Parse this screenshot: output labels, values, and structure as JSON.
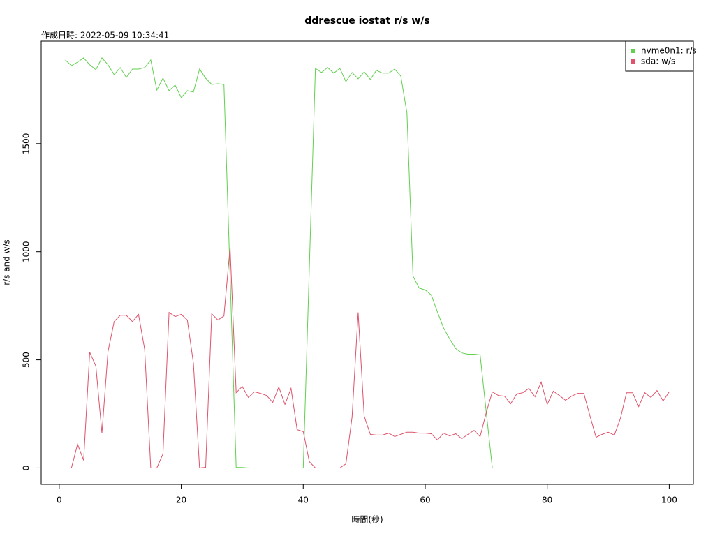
{
  "chart_data": {
    "type": "line",
    "title": "ddrescue iostat r/s w/s",
    "subtitle": "作成日時: 2022-05-09 10:34:41",
    "x_label": "時間(秒)",
    "y_label": "r/s and w/s",
    "x": [
      1,
      2,
      3,
      4,
      5,
      6,
      7,
      8,
      9,
      10,
      11,
      12,
      13,
      14,
      15,
      16,
      17,
      18,
      19,
      20,
      21,
      22,
      23,
      24,
      25,
      26,
      27,
      28,
      29,
      30,
      31,
      32,
      33,
      34,
      35,
      36,
      37,
      38,
      39,
      40,
      41,
      42,
      43,
      44,
      45,
      46,
      47,
      48,
      49,
      50,
      51,
      52,
      53,
      54,
      55,
      56,
      57,
      58,
      59,
      60,
      61,
      62,
      63,
      64,
      65,
      66,
      67,
      68,
      69,
      70,
      71,
      72,
      73,
      74,
      75,
      76,
      77,
      78,
      79,
      80,
      81,
      82,
      83,
      84,
      85,
      86,
      87,
      88,
      89,
      90,
      91,
      92,
      93,
      94,
      95,
      96,
      97,
      98,
      99,
      100
    ],
    "series": [
      {
        "name": "nvme0n1: r/s",
        "color": "#61D04F",
        "values": [
          1887,
          1861,
          1877,
          1897,
          1865,
          1842,
          1897,
          1865,
          1819,
          1852,
          1806,
          1845,
          1845,
          1852,
          1887,
          1748,
          1803,
          1745,
          1771,
          1713,
          1745,
          1739,
          1845,
          1803,
          1774,
          1777,
          1774,
          890,
          2,
          2,
          0,
          0,
          0,
          0,
          0,
          0,
          0,
          0,
          0,
          0,
          925,
          1848,
          1829,
          1852,
          1826,
          1848,
          1787,
          1829,
          1800,
          1832,
          1797,
          1839,
          1826,
          1826,
          1845,
          1813,
          1642,
          887,
          832,
          823,
          800,
          721,
          648,
          597,
          552,
          532,
          526,
          526,
          523,
          261,
          0,
          0,
          0,
          0,
          0,
          0,
          0,
          0,
          0,
          0,
          0,
          0,
          0,
          0,
          0,
          0,
          0,
          0,
          0,
          0,
          0,
          0,
          0,
          0,
          0,
          0,
          0,
          0,
          0,
          0
        ]
      },
      {
        "name": "sda: w/s",
        "color": "#DF536B",
        "values": [
          0,
          0,
          110,
          35,
          535,
          471,
          161,
          539,
          677,
          706,
          706,
          677,
          710,
          548,
          0,
          0,
          65,
          719,
          700,
          710,
          684,
          484,
          0,
          3,
          713,
          684,
          703,
          1019,
          348,
          377,
          326,
          352,
          345,
          335,
          303,
          374,
          294,
          368,
          177,
          168,
          29,
          0,
          0,
          0,
          0,
          0,
          19,
          235,
          719,
          239,
          155,
          152,
          152,
          161,
          145,
          155,
          165,
          165,
          161,
          161,
          158,
          129,
          161,
          148,
          158,
          135,
          155,
          174,
          145,
          255,
          352,
          335,
          332,
          297,
          342,
          348,
          368,
          329,
          397,
          294,
          355,
          335,
          313,
          332,
          345,
          345,
          242,
          142,
          155,
          165,
          152,
          229,
          348,
          348,
          284,
          348,
          326,
          358,
          310,
          352
        ]
      }
    ],
    "xlim": [
      -2.96,
      103.96
    ],
    "ylim": [
      -76,
      1974
    ],
    "xticks": [
      0,
      20,
      40,
      60,
      80,
      100
    ],
    "yticks": [
      0,
      500,
      1000,
      1500
    ],
    "legend": "topright"
  }
}
